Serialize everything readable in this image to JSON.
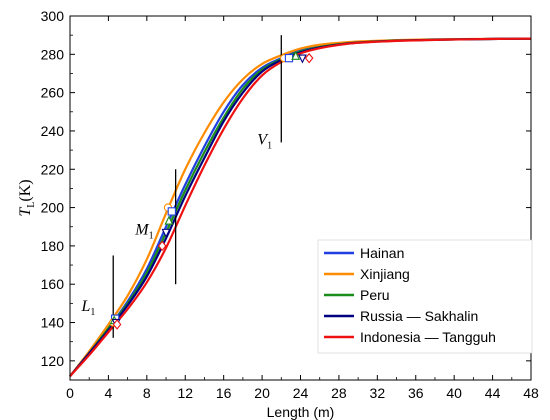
{
  "chart_data": {
    "type": "line",
    "xlabel": "Length (m)",
    "ylabel": {
      "main": "T",
      "sub": "L",
      "unit": "(K)"
    },
    "xlim": [
      0,
      48
    ],
    "ylim": [
      110,
      300
    ],
    "xticks": [
      0,
      4,
      8,
      12,
      16,
      20,
      24,
      28,
      32,
      36,
      40,
      44,
      48
    ],
    "yticks": [
      120,
      140,
      160,
      180,
      200,
      220,
      240,
      260,
      280,
      300
    ],
    "grid": false,
    "legend_position": "bottom-right",
    "x": [
      0,
      2,
      4,
      6,
      8,
      10,
      12,
      14,
      16,
      18,
      20,
      22,
      24,
      26,
      28,
      30,
      34,
      38,
      42,
      48
    ],
    "series": [
      {
        "name": "Hainan",
        "color": "#1f3fe0",
        "values": [
          112,
          124,
          137,
          151,
          168,
          190,
          212,
          232,
          250,
          264,
          273,
          278,
          282,
          284,
          285.5,
          286.3,
          287.2,
          287.6,
          287.9,
          288.2
        ]
      },
      {
        "name": "Xinjiang",
        "color": "#ff8c00",
        "values": [
          112,
          125,
          139,
          154,
          173,
          197,
          220,
          239,
          255,
          267,
          275,
          279.5,
          283,
          285,
          286,
          286.7,
          287.4,
          287.8,
          288.0,
          288.2
        ]
      },
      {
        "name": "Peru",
        "color": "#1a8c1a",
        "values": [
          112,
          124,
          137,
          150,
          166,
          187,
          209,
          229,
          247,
          262,
          272,
          277.5,
          281.5,
          283.8,
          285.3,
          286.2,
          287.2,
          287.6,
          287.9,
          288.2
        ]
      },
      {
        "name": "Russia — Sakhalin",
        "color": "#000080",
        "values": [
          112,
          124,
          136,
          149,
          164,
          184,
          206,
          226,
          245,
          260,
          271,
          277,
          281,
          283.5,
          285.1,
          286.1,
          287.1,
          287.6,
          287.9,
          288.2
        ]
      },
      {
        "name": "Indonesia — Tangguh",
        "color": "#ee1111",
        "values": [
          112,
          123,
          135,
          147,
          161,
          179,
          201,
          222,
          241,
          257,
          269,
          276,
          280.5,
          283.2,
          284.9,
          286,
          287,
          287.5,
          287.9,
          288.2
        ]
      }
    ],
    "annotations": [
      {
        "main": "L",
        "sub": "1",
        "x": 1.2,
        "y": 146
      },
      {
        "main": "M",
        "sub": "1",
        "x": 6.8,
        "y": 186
      },
      {
        "main": "V",
        "sub": "1",
        "x": 19.5,
        "y": 233
      }
    ],
    "vertical_markers": [
      {
        "x": 4.5,
        "y1": 132,
        "y2": 175
      },
      {
        "x": 11.0,
        "y1": 160,
        "y2": 220
      },
      {
        "x": 22.0,
        "y1": 234,
        "y2": 290
      }
    ],
    "transition_points": [
      {
        "series": 0,
        "x": 4.7,
        "y": 142,
        "marker": "square"
      },
      {
        "series": 1,
        "x": 4.5,
        "y": 140,
        "marker": "circle"
      },
      {
        "series": 2,
        "x": 4.6,
        "y": 141,
        "marker": "triangle"
      },
      {
        "series": 3,
        "x": 4.8,
        "y": 140,
        "marker": "triangle-down"
      },
      {
        "series": 4,
        "x": 4.9,
        "y": 139,
        "marker": "diamond"
      },
      {
        "series": 1,
        "x": 10.2,
        "y": 200,
        "marker": "circle"
      },
      {
        "series": 0,
        "x": 10.6,
        "y": 198,
        "marker": "square"
      },
      {
        "series": 2,
        "x": 10.3,
        "y": 193,
        "marker": "triangle"
      },
      {
        "series": 3,
        "x": 10.0,
        "y": 187,
        "marker": "triangle-down"
      },
      {
        "series": 4,
        "x": 9.6,
        "y": 180,
        "marker": "diamond"
      },
      {
        "series": 1,
        "x": 22.3,
        "y": 278,
        "marker": "circle"
      },
      {
        "series": 0,
        "x": 22.8,
        "y": 278,
        "marker": "square"
      },
      {
        "series": 2,
        "x": 23.5,
        "y": 279,
        "marker": "triangle"
      },
      {
        "series": 3,
        "x": 24.2,
        "y": 278,
        "marker": "triangle-down"
      },
      {
        "series": 4,
        "x": 24.9,
        "y": 278,
        "marker": "diamond"
      }
    ]
  }
}
